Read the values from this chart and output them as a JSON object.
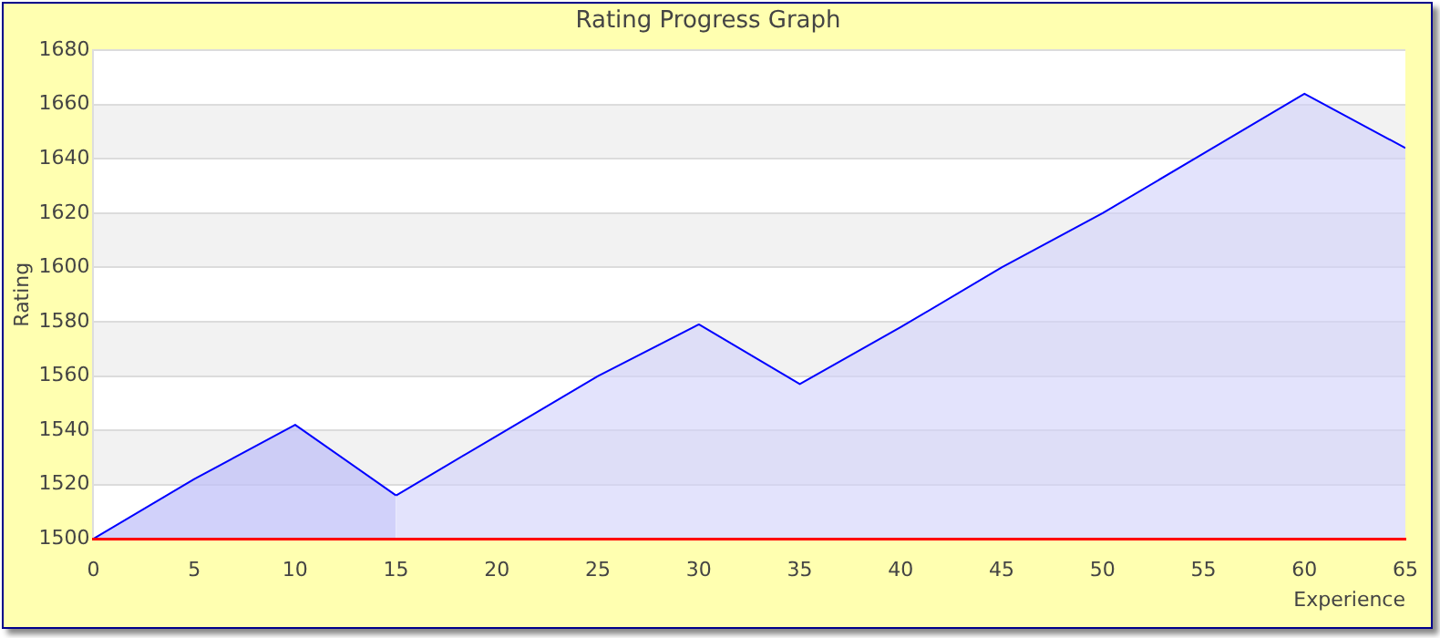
{
  "chart_data": {
    "type": "area",
    "title": "Rating Progress Graph",
    "xlabel": "Experience",
    "ylabel": "Rating",
    "series": [
      {
        "color": "#0000ff",
        "x": [
          0,
          5,
          10,
          15
        ],
        "values": [
          1500,
          1522,
          1542,
          1516
        ]
      },
      {
        "color": "#0000ff",
        "x": [
          15,
          20,
          25,
          30,
          35,
          40,
          45,
          50,
          55,
          60,
          65
        ],
        "values": [
          1516,
          1538,
          1560,
          1579,
          1557,
          1578,
          1600,
          1620,
          1642,
          1664,
          1644
        ]
      }
    ],
    "xlim": [
      0,
      65
    ],
    "xticks": [
      0,
      5,
      10,
      15,
      20,
      25,
      30,
      35,
      40,
      45,
      50,
      55,
      60,
      65
    ],
    "ylim": [
      1500,
      1680
    ],
    "yticks": [
      1500,
      1520,
      1540,
      1560,
      1580,
      1600,
      1620,
      1640,
      1660,
      1680
    ],
    "grid": "y",
    "legend": false,
    "marker": "none",
    "line_style": "solid"
  }
}
